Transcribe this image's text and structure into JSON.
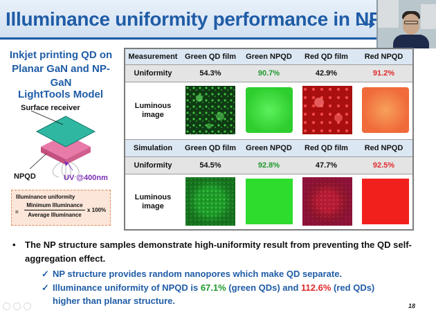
{
  "slide": {
    "title": "Illuminance uniformity performance in NPQD",
    "page_number": "18"
  },
  "left": {
    "heading": "Inkjet printing QD on Planar GaN and NP-GaN",
    "model_title": "LightTools Model",
    "surface_label": "Surface receiver",
    "npqd_label": "NPQD",
    "uv_label": "UV @400nm",
    "formula": {
      "title": "Illuminance uniformity",
      "equals": "=",
      "numerator": "Minimum Illuminance",
      "denominator": "Average Illuminance",
      "multiplier": "x 100%"
    }
  },
  "table": {
    "measurement": {
      "headers": [
        "Measurement",
        "Green QD film",
        "Green NPQD",
        "Red QD film",
        "Red NPQD"
      ],
      "uniformity_label": "Uniformity",
      "uniformity": [
        "54.3%",
        "90.7%",
        "42.9%",
        "91.2%"
      ],
      "image_label": "Luminous image"
    },
    "simulation": {
      "headers": [
        "Simulation",
        "Green QD film",
        "Green NPQD",
        "Red QD film",
        "Red NPQD"
      ],
      "uniformity_label": "Uniformity",
      "uniformity": [
        "54.5%",
        "92.8%",
        "47.7%",
        "92.5%"
      ],
      "image_label": "Luminous image"
    }
  },
  "bullets": {
    "main": "The NP structure samples demonstrate high-uniformity result from preventing the QD self-aggregation effect.",
    "sub1": "NP structure provides random nanopores which make QD separate.",
    "sub2_pre": "Illuminance uniformity of NPQD is ",
    "sub2_green": "67.1%",
    "sub2_mid1": " (green QDs) and ",
    "sub2_red": "112.6%",
    "sub2_mid2": " (red QDs)",
    "sub2_end": "higher than planar structure."
  },
  "colors": {
    "title_blue": "#1f5ca6",
    "green_value": "#1e9a2c",
    "red_value": "#e0282a",
    "uv_purple": "#7a2fb5"
  }
}
